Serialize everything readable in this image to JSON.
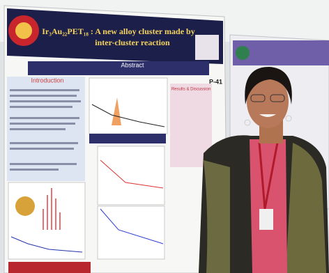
{
  "poster": {
    "title": "Ir₃Au₂₂PET₁₈ : A new alloy cluster made by",
    "title_line2": "inter-cluster reaction",
    "board_number": "P-41",
    "abstract_heading": "Abstract",
    "introduction_heading": "Introduction",
    "results_heading": "Results & Discussion"
  }
}
